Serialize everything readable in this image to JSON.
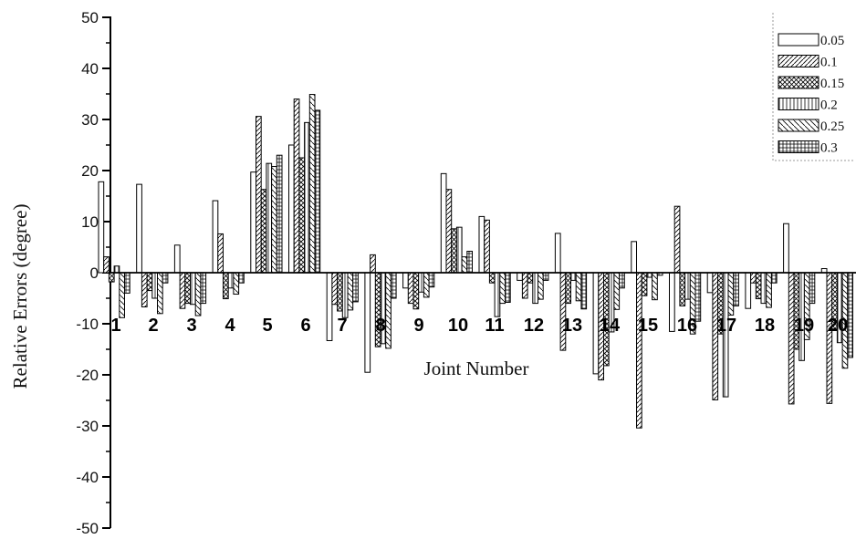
{
  "chart_data": {
    "type": "bar",
    "ylabel": "Relative Errors (degree)",
    "xlabel": "Joint Number",
    "ylim": [
      -50,
      50
    ],
    "yticks": [
      -50,
      -40,
      -30,
      -20,
      -10,
      0,
      10,
      20,
      30,
      40,
      50
    ],
    "ytick_labels": [
      "-50",
      "-40",
      "-30",
      "-20",
      "-10",
      "0",
      "10",
      "20",
      "30",
      "40",
      "50"
    ],
    "legend_position": "top-right",
    "grid": false,
    "categories": [
      "1",
      "2",
      "3",
      "4",
      "5",
      "6",
      "7",
      "8",
      "9",
      "10",
      "11",
      "12",
      "13",
      "14",
      "15",
      "16",
      "17",
      "18",
      "19",
      "20"
    ],
    "series": [
      {
        "name": "0.05",
        "pattern": "plain",
        "values": [
          17.8,
          17.3,
          5.4,
          14.1,
          19.7,
          25.0,
          -13.3,
          -19.5,
          -3.0,
          19.4,
          11.0,
          -1.5,
          7.7,
          -19.8,
          6.1,
          -11.5,
          -3.9,
          -7.0,
          9.6,
          0.8
        ]
      },
      {
        "name": "0.1",
        "pattern": "diagonal",
        "values": [
          3.1,
          -6.7,
          -7.0,
          7.6,
          30.6,
          34.0,
          -6.2,
          3.5,
          -6.0,
          16.3,
          10.3,
          -5.0,
          -15.2,
          -21.0,
          -30.4,
          13.0,
          -24.9,
          -2.0,
          -25.7,
          -25.6
        ]
      },
      {
        "name": "0.15",
        "pattern": "crosshatch",
        "values": [
          -1.8,
          -3.5,
          -6.0,
          -5.1,
          16.3,
          22.5,
          -7.5,
          -14.5,
          -7.1,
          8.6,
          -2.0,
          -2.0,
          -6.0,
          -18.2,
          -4.5,
          -6.5,
          -12.0,
          -5.1,
          -15.0,
          -11.0
        ]
      },
      {
        "name": "0.2",
        "pattern": "vertical",
        "values": [
          1.3,
          -5.0,
          -6.2,
          -3.0,
          21.4,
          29.4,
          -8.8,
          -13.9,
          -3.8,
          8.9,
          -8.6,
          -6.0,
          -1.5,
          -11.6,
          -0.9,
          -5.2,
          -24.3,
          -6.0,
          -17.2,
          -13.7
        ]
      },
      {
        "name": "0.25",
        "pattern": "backslash",
        "values": [
          -8.8,
          -8.0,
          -8.4,
          -4.2,
          20.8,
          34.9,
          -7.3,
          -14.8,
          -4.8,
          3.1,
          -6.0,
          -5.2,
          -5.5,
          -7.2,
          -5.3,
          -12.0,
          -8.3,
          -6.8,
          -13.1,
          -18.7
        ]
      },
      {
        "name": "0.3",
        "pattern": "grid",
        "values": [
          -4.0,
          -2.0,
          -6.0,
          -2.0,
          23.0,
          31.8,
          -5.7,
          -5.0,
          -2.8,
          4.2,
          -5.8,
          -1.5,
          -7.1,
          -3.0,
          -0.5,
          -9.5,
          -6.5,
          -2.0,
          -6.0,
          -16.6
        ]
      }
    ]
  }
}
